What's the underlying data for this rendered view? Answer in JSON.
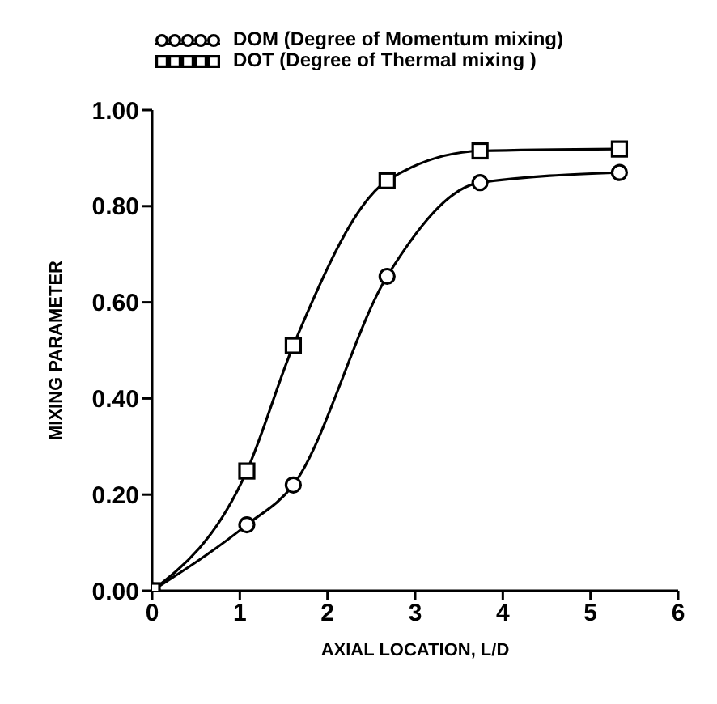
{
  "chart_data": {
    "type": "line",
    "xlabel": "AXIAL LOCATION, L/D",
    "ylabel": "MIXING PARAMETER",
    "x": [
      0,
      1.08,
      1.61,
      2.68,
      3.74,
      5.33
    ],
    "series": [
      {
        "name": "DOM (Degree of Momentum mixing)",
        "color": "#000000",
        "marker": "circle",
        "values": [
          0,
          0.137,
          0.22,
          0.654,
          0.849,
          0.87
        ]
      },
      {
        "name": "DOT (Degree of Thermal mixing )",
        "color": "#000000",
        "marker": "square",
        "values": [
          0,
          0.249,
          0.51,
          0.853,
          0.915,
          0.919
        ]
      }
    ],
    "xlim": [
      0,
      6
    ],
    "xticks": [
      0,
      1,
      2,
      3,
      4,
      5,
      6
    ],
    "ylim": [
      0,
      1
    ],
    "yticks": [
      {
        "value": 0,
        "label": "0.00"
      },
      {
        "value": 0.2,
        "label": "0.20"
      },
      {
        "value": 0.4,
        "label": "0.40"
      },
      {
        "value": 0.6,
        "label": "0.60"
      },
      {
        "value": 0.8,
        "label": "0.80"
      },
      {
        "value": 1,
        "label": "1.00"
      }
    ],
    "grid": false,
    "legend": "top",
    "line_style": "solid"
  }
}
